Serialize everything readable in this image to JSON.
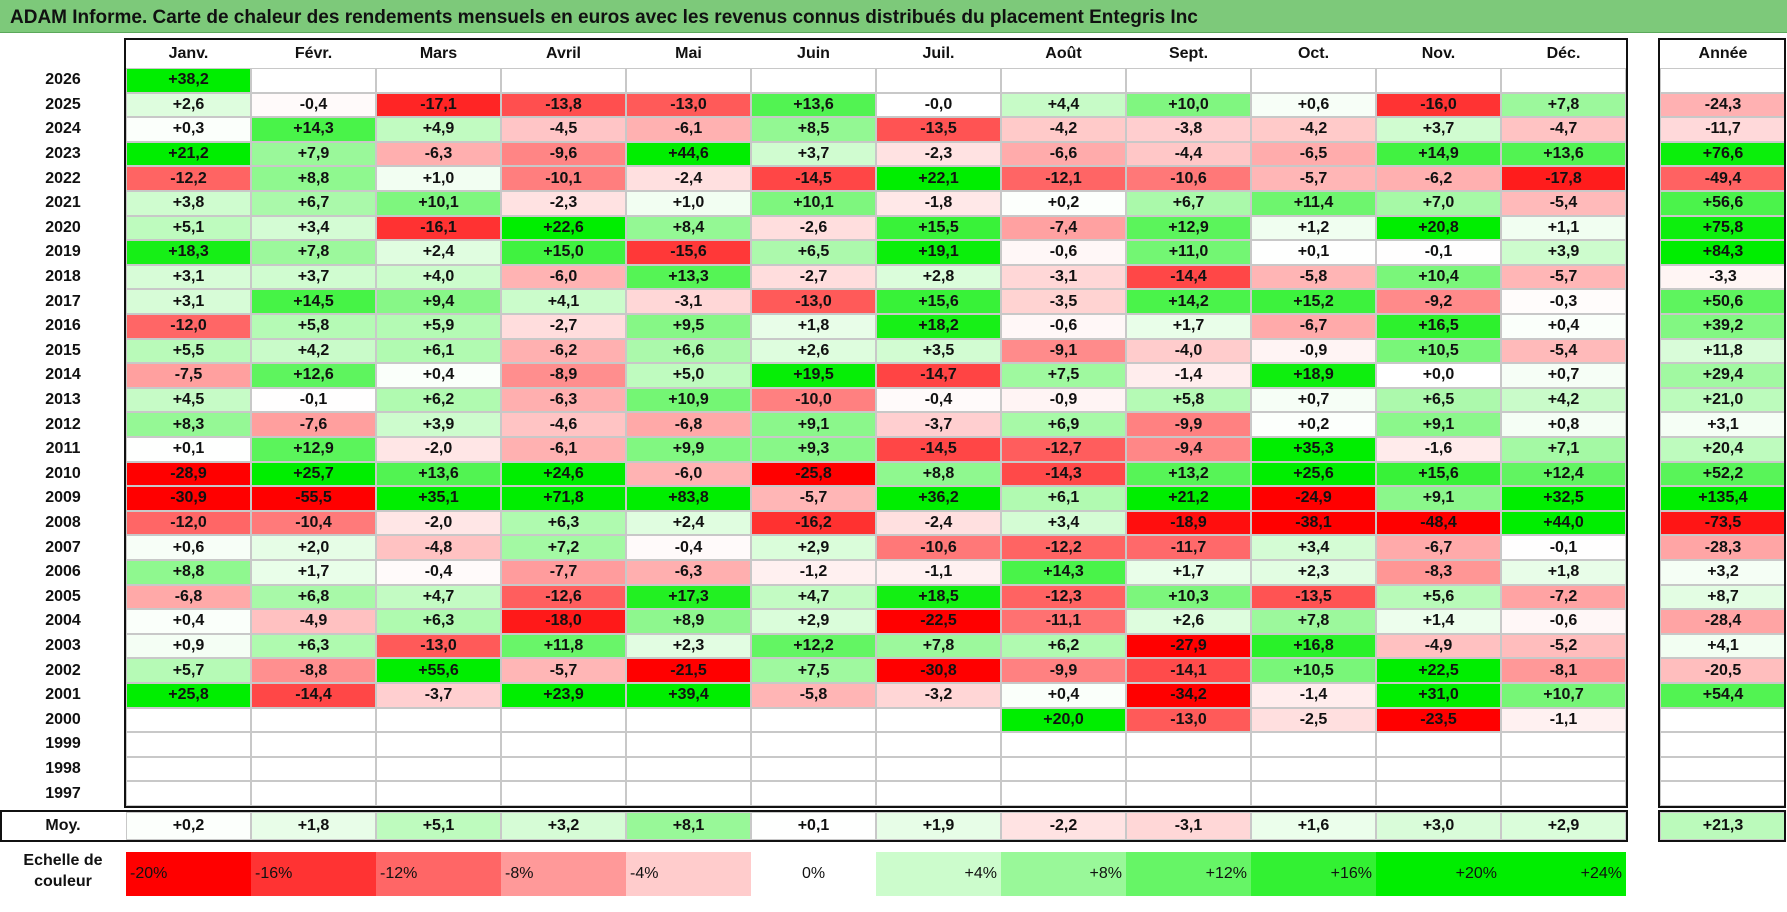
{
  "title": "ADAM Informe. Carte de chaleur des rendements mensuels en euros avec les revenus connus distribués du placement Entegris Inc",
  "chart_data": {
    "type": "heatmap",
    "months": [
      "Janv.",
      "Févr.",
      "Mars",
      "Avril",
      "Mai",
      "Juin",
      "Juil.",
      "Août",
      "Sept.",
      "Oct.",
      "Nov.",
      "Déc."
    ],
    "year_header": "Année",
    "rows": [
      {
        "year": "2026",
        "values": [
          "+38,2",
          null,
          null,
          null,
          null,
          null,
          null,
          null,
          null,
          null,
          null,
          null
        ],
        "annual": null
      },
      {
        "year": "2025",
        "values": [
          "+2,6",
          "-0,4",
          "-17,1",
          "-13,8",
          "-13,0",
          "+13,6",
          "-0,0",
          "+4,4",
          "+10,0",
          "+0,6",
          "-16,0",
          "+7,8"
        ],
        "annual": "-24,3"
      },
      {
        "year": "2024",
        "values": [
          "+0,3",
          "+14,3",
          "+4,9",
          "-4,5",
          "-6,1",
          "+8,5",
          "-13,5",
          "-4,2",
          "-3,8",
          "-4,2",
          "+3,7",
          "-4,7"
        ],
        "annual": "-11,7"
      },
      {
        "year": "2023",
        "values": [
          "+21,2",
          "+7,9",
          "-6,3",
          "-9,6",
          "+44,6",
          "+3,7",
          "-2,3",
          "-6,6",
          "-4,4",
          "-6,5",
          "+14,9",
          "+13,6"
        ],
        "annual": "+76,6"
      },
      {
        "year": "2022",
        "values": [
          "-12,2",
          "+8,8",
          "+1,0",
          "-10,1",
          "-2,4",
          "-14,5",
          "+22,1",
          "-12,1",
          "-10,6",
          "-5,7",
          "-6,2",
          "-17,8"
        ],
        "annual": "-49,4"
      },
      {
        "year": "2021",
        "values": [
          "+3,8",
          "+6,7",
          "+10,1",
          "-2,3",
          "+1,0",
          "+10,1",
          "-1,8",
          "+0,2",
          "+6,7",
          "+11,4",
          "+7,0",
          "-5,4"
        ],
        "annual": "+56,6"
      },
      {
        "year": "2020",
        "values": [
          "+5,1",
          "+3,4",
          "-16,1",
          "+22,6",
          "+8,4",
          "-2,6",
          "+15,5",
          "-7,4",
          "+12,9",
          "+1,2",
          "+20,8",
          "+1,1"
        ],
        "annual": "+75,8"
      },
      {
        "year": "2019",
        "values": [
          "+18,3",
          "+7,8",
          "+2,4",
          "+15,0",
          "-15,6",
          "+6,5",
          "+19,1",
          "-0,6",
          "+11,0",
          "+0,1",
          "-0,1",
          "+3,9"
        ],
        "annual": "+84,3"
      },
      {
        "year": "2018",
        "values": [
          "+3,1",
          "+3,7",
          "+4,0",
          "-6,0",
          "+13,3",
          "-2,7",
          "+2,8",
          "-3,1",
          "-14,4",
          "-5,8",
          "+10,4",
          "-5,7"
        ],
        "annual": "-3,3"
      },
      {
        "year": "2017",
        "values": [
          "+3,1",
          "+14,5",
          "+9,4",
          "+4,1",
          "-3,1",
          "-13,0",
          "+15,6",
          "-3,5",
          "+14,2",
          "+15,2",
          "-9,2",
          "-0,3"
        ],
        "annual": "+50,6"
      },
      {
        "year": "2016",
        "values": [
          "-12,0",
          "+5,8",
          "+5,9",
          "-2,7",
          "+9,5",
          "+1,8",
          "+18,2",
          "-0,6",
          "+1,7",
          "-6,7",
          "+16,5",
          "+0,4"
        ],
        "annual": "+39,2"
      },
      {
        "year": "2015",
        "values": [
          "+5,5",
          "+4,2",
          "+6,1",
          "-6,2",
          "+6,6",
          "+2,6",
          "+3,5",
          "-9,1",
          "-4,0",
          "-0,9",
          "+10,5",
          "-5,4"
        ],
        "annual": "+11,8"
      },
      {
        "year": "2014",
        "values": [
          "-7,5",
          "+12,6",
          "+0,4",
          "-8,9",
          "+5,0",
          "+19,5",
          "-14,7",
          "+7,5",
          "-1,4",
          "+18,9",
          "+0,0",
          "+0,7"
        ],
        "annual": "+29,4"
      },
      {
        "year": "2013",
        "values": [
          "+4,5",
          "-0,1",
          "+6,2",
          "-6,3",
          "+10,9",
          "-10,0",
          "-0,4",
          "-0,9",
          "+5,8",
          "+0,7",
          "+6,5",
          "+4,2"
        ],
        "annual": "+21,0"
      },
      {
        "year": "2012",
        "values": [
          "+8,3",
          "-7,6",
          "+3,9",
          "-4,6",
          "-6,8",
          "+9,1",
          "-3,7",
          "+6,9",
          "-9,9",
          "+0,2",
          "+9,1",
          "+0,8"
        ],
        "annual": "+3,1"
      },
      {
        "year": "2011",
        "values": [
          "+0,1",
          "+12,9",
          "-2,0",
          "-6,1",
          "+9,9",
          "+9,3",
          "-14,5",
          "-12,7",
          "-9,4",
          "+35,3",
          "-1,6",
          "+7,1"
        ],
        "annual": "+20,4"
      },
      {
        "year": "2010",
        "values": [
          "-28,9",
          "+25,7",
          "+13,6",
          "+24,6",
          "-6,0",
          "-25,8",
          "+8,8",
          "-14,3",
          "+13,2",
          "+25,6",
          "+15,6",
          "+12,4"
        ],
        "annual": "+52,2"
      },
      {
        "year": "2009",
        "values": [
          "-30,9",
          "-55,5",
          "+35,1",
          "+71,8",
          "+83,8",
          "-5,7",
          "+36,2",
          "+6,1",
          "+21,2",
          "-24,9",
          "+9,1",
          "+32,5"
        ],
        "annual": "+135,4"
      },
      {
        "year": "2008",
        "values": [
          "-12,0",
          "-10,4",
          "-2,0",
          "+6,3",
          "+2,4",
          "-16,2",
          "-2,4",
          "+3,4",
          "-18,9",
          "-38,1",
          "-48,4",
          "+44,0"
        ],
        "annual": "-73,5"
      },
      {
        "year": "2007",
        "values": [
          "+0,6",
          "+2,0",
          "-4,8",
          "+7,2",
          "-0,4",
          "+2,9",
          "-10,6",
          "-12,2",
          "-11,7",
          "+3,4",
          "-6,7",
          "-0,1"
        ],
        "annual": "-28,3"
      },
      {
        "year": "2006",
        "values": [
          "+8,8",
          "+1,7",
          "-0,4",
          "-7,7",
          "-6,3",
          "-1,2",
          "-1,1",
          "+14,3",
          "+1,7",
          "+2,3",
          "-8,3",
          "+1,8"
        ],
        "annual": "+3,2"
      },
      {
        "year": "2005",
        "values": [
          "-6,8",
          "+6,8",
          "+4,7",
          "-12,6",
          "+17,3",
          "+4,7",
          "+18,5",
          "-12,3",
          "+10,3",
          "-13,5",
          "+5,6",
          "-7,2"
        ],
        "annual": "+8,7"
      },
      {
        "year": "2004",
        "values": [
          "+0,4",
          "-4,9",
          "+6,3",
          "-18,0",
          "+8,9",
          "+2,9",
          "-22,5",
          "-11,1",
          "+2,6",
          "+7,8",
          "+1,4",
          "-0,6"
        ],
        "annual": "-28,4"
      },
      {
        "year": "2003",
        "values": [
          "+0,9",
          "+6,3",
          "-13,0",
          "+11,8",
          "+2,3",
          "+12,2",
          "+7,8",
          "+6,2",
          "-27,9",
          "+16,8",
          "-4,9",
          "-5,2"
        ],
        "annual": "+4,1"
      },
      {
        "year": "2002",
        "values": [
          "+5,7",
          "-8,8",
          "+55,6",
          "-5,7",
          "-21,5",
          "+7,5",
          "-30,8",
          "-9,9",
          "-14,1",
          "+10,5",
          "+22,5",
          "-8,1"
        ],
        "annual": "-20,5"
      },
      {
        "year": "2001",
        "values": [
          "+25,8",
          "-14,4",
          "-3,7",
          "+23,9",
          "+39,4",
          "-5,8",
          "-3,2",
          "+0,4",
          "-34,2",
          "-1,4",
          "+31,0",
          "+10,7"
        ],
        "annual": "+54,4"
      },
      {
        "year": "2000",
        "values": [
          null,
          null,
          null,
          null,
          null,
          null,
          null,
          "+20,0",
          "-13,0",
          "-2,5",
          "-23,5",
          "-1,1"
        ],
        "annual": null
      },
      {
        "year": "1999",
        "values": [
          null,
          null,
          null,
          null,
          null,
          null,
          null,
          null,
          null,
          null,
          null,
          null
        ],
        "annual": null
      },
      {
        "year": "1998",
        "values": [
          null,
          null,
          null,
          null,
          null,
          null,
          null,
          null,
          null,
          null,
          null,
          null
        ],
        "annual": null
      },
      {
        "year": "1997",
        "values": [
          null,
          null,
          null,
          null,
          null,
          null,
          null,
          null,
          null,
          null,
          null,
          null
        ],
        "annual": null
      }
    ],
    "average": {
      "label": "Moy.",
      "values": [
        "+0,2",
        "+1,8",
        "+5,1",
        "+3,2",
        "+8,1",
        "+0,1",
        "+1,9",
        "-2,2",
        "-3,1",
        "+1,6",
        "+3,0",
        "+2,9"
      ],
      "annual": "+21,3"
    },
    "scale": {
      "label": "Echelle de couleur",
      "steps": [
        "-20%",
        "-16%",
        "-12%",
        "-8%",
        "-4%",
        "0%",
        "+4%",
        "+8%",
        "+12%",
        "+16%",
        "+20%",
        "+24%"
      ],
      "step_values": [
        -20,
        -16,
        -12,
        -8,
        -4,
        0,
        4,
        8,
        12,
        16,
        20,
        24
      ]
    },
    "colors": {
      "negative": "#ff0000",
      "positive": "#00ee00",
      "neutral": "#ffffff",
      "title_bg": "#7dc97a"
    }
  }
}
